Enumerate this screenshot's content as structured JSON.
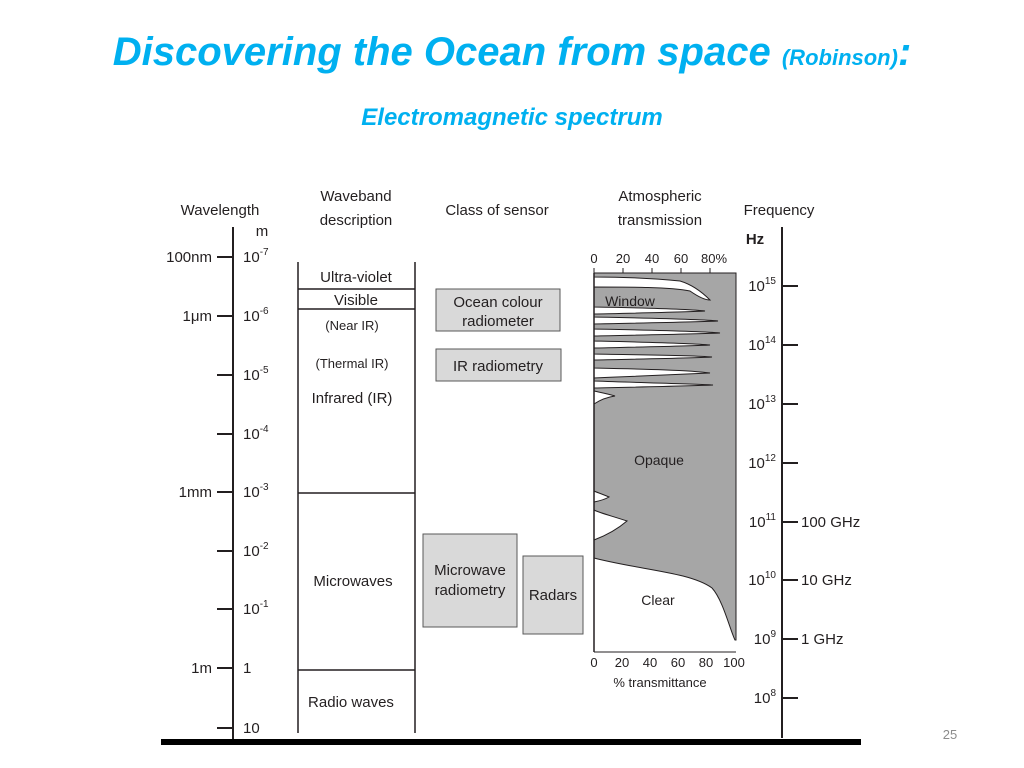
{
  "slide": {
    "title": "Discovering the Ocean from space",
    "title_paren": "(Robinson)",
    "title_colon": ":",
    "subtitle": "Electromagnetic spectrum",
    "page_number": "25"
  },
  "diagram": {
    "headers": {
      "wavelength": "Wavelength",
      "wavelength_unit": "m",
      "waveband_line1": "Waveband",
      "waveband_line2": "description",
      "sensor": "Class of sensor",
      "atmos_line1": "Atmospheric",
      "atmos_line2": "transmission",
      "frequency": "Frequency",
      "frequency_unit": "Hz"
    },
    "wavelength_labels": [
      "100nm",
      "1μm",
      "1mm",
      "1m"
    ],
    "wavelength_ticks": [
      {
        "base": "10",
        "exp": "-7"
      },
      {
        "base": "10",
        "exp": "-6"
      },
      {
        "base": "10",
        "exp": "-5"
      },
      {
        "base": "10",
        "exp": "-4"
      },
      {
        "base": "10",
        "exp": "-3"
      },
      {
        "base": "10",
        "exp": "-2"
      },
      {
        "base": "10",
        "exp": "-1"
      },
      {
        "base": "1",
        "exp": ""
      },
      {
        "base": "10",
        "exp": ""
      }
    ],
    "wavebands": [
      "Ultra-violet",
      "Visible",
      "(Near IR)",
      "(Thermal IR)",
      "Infrared (IR)",
      "Microwaves",
      "Radio waves"
    ],
    "sensors": {
      "ocean_colour_line1": "Ocean colour",
      "ocean_colour_line2": "radiometer",
      "ir": "IR radiometry",
      "microwave_line1": "Microwave",
      "microwave_line2": "radiometry",
      "radars": "Radars"
    },
    "transmission": {
      "top_ticks": [
        "0",
        "20",
        "40",
        "60",
        "80%"
      ],
      "bottom_ticks": [
        "0",
        "20",
        "40",
        "60",
        "80",
        "100"
      ],
      "xlabel": "% transmittance",
      "regions": [
        "Window",
        "Opaque",
        "Clear"
      ],
      "fill_color": "#a6a6a6"
    },
    "frequency_ticks": [
      {
        "base": "10",
        "exp": "15",
        "label": ""
      },
      {
        "base": "10",
        "exp": "14",
        "label": ""
      },
      {
        "base": "10",
        "exp": "13",
        "label": ""
      },
      {
        "base": "10",
        "exp": "12",
        "label": ""
      },
      {
        "base": "10",
        "exp": "11",
        "label": "100 GHz"
      },
      {
        "base": "10",
        "exp": "10",
        "label": "10 GHz"
      },
      {
        "base": "10",
        "exp": "9",
        "label": "1 GHz"
      },
      {
        "base": "10",
        "exp": "8",
        "label": ""
      }
    ]
  }
}
